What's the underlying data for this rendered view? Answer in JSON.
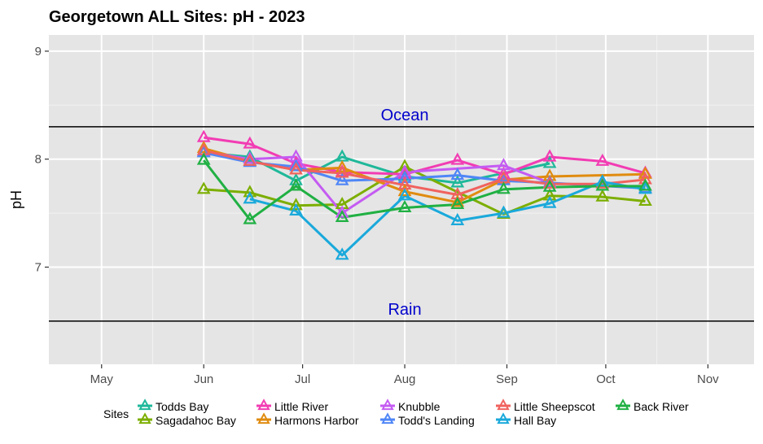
{
  "chart_data": {
    "type": "line",
    "title": "Georgetown ALL Sites: pH - 2023",
    "xlabel": "",
    "ylabel": "pH",
    "xlim": [
      "2023-04-15",
      "2023-11-15"
    ],
    "ylim": [
      6.1,
      9.15
    ],
    "x_ticks": [
      {
        "label": "May",
        "date": "2023-05-01"
      },
      {
        "label": "Jun",
        "date": "2023-06-01"
      },
      {
        "label": "Jul",
        "date": "2023-07-01"
      },
      {
        "label": "Aug",
        "date": "2023-08-01"
      },
      {
        "label": "Sep",
        "date": "2023-09-01"
      },
      {
        "label": "Oct",
        "date": "2023-10-01"
      },
      {
        "label": "Nov",
        "date": "2023-11-01"
      }
    ],
    "y_ticks": [
      7,
      8,
      9
    ],
    "grid": true,
    "background": "#e5e5e5",
    "reference_lines": [
      {
        "label": "Ocean",
        "y": 8.3,
        "label_date": "2023-08-01",
        "color": "#000000",
        "label_color": "#0000cc"
      },
      {
        "label": "Rain",
        "y": 6.5,
        "label_date": "2023-08-01",
        "color": "#000000",
        "label_color": "#0000cc"
      }
    ],
    "legend": {
      "title": "Sites",
      "position": "bottom",
      "marker": "triangle"
    },
    "series": [
      {
        "name": "Todds Bay",
        "color": "#1FB89A",
        "x": [
          "2023-06-01",
          "2023-06-15",
          "2023-06-29",
          "2023-07-13",
          "2023-08-01",
          "2023-08-17",
          "2023-09-14"
        ],
        "y": [
          8.06,
          8.02,
          7.8,
          8.02,
          7.84,
          7.78,
          7.96
        ]
      },
      {
        "name": "Sagadahoc Bay",
        "color": "#7CAE00",
        "x": [
          "2023-06-01",
          "2023-06-15",
          "2023-06-29",
          "2023-07-13",
          "2023-08-01",
          "2023-08-31",
          "2023-09-14",
          "2023-09-30",
          "2023-10-13"
        ],
        "y": [
          7.72,
          7.69,
          7.57,
          7.58,
          7.93,
          7.49,
          7.66,
          7.65,
          7.61
        ]
      },
      {
        "name": "Little River",
        "color": "#F23CB3",
        "x": [
          "2023-06-01",
          "2023-06-15",
          "2023-06-29",
          "2023-07-13",
          "2023-08-01",
          "2023-08-17",
          "2023-08-31",
          "2023-09-14",
          "2023-09-30",
          "2023-10-13"
        ],
        "y": [
          8.2,
          8.14,
          7.96,
          7.88,
          7.86,
          7.99,
          7.86,
          8.02,
          7.98,
          7.87
        ]
      },
      {
        "name": "Harmons Harbor",
        "color": "#E08B0F",
        "x": [
          "2023-06-01",
          "2023-06-15",
          "2023-06-29",
          "2023-07-13",
          "2023-08-01",
          "2023-08-17",
          "2023-08-31",
          "2023-09-14",
          "2023-10-13"
        ],
        "y": [
          8.1,
          7.98,
          7.9,
          7.92,
          7.7,
          7.6,
          7.81,
          7.84,
          7.86
        ]
      },
      {
        "name": "Knubble",
        "color": "#C45BF2",
        "x": [
          "2023-06-01",
          "2023-06-15",
          "2023-06-29",
          "2023-07-13",
          "2023-08-01",
          "2023-08-31",
          "2023-09-14"
        ],
        "y": [
          8.07,
          8.0,
          8.02,
          7.5,
          7.88,
          7.94,
          7.78
        ]
      },
      {
        "name": "Todd's Landing",
        "color": "#4F86F7",
        "x": [
          "2023-06-01",
          "2023-06-15",
          "2023-06-29",
          "2023-07-13",
          "2023-08-01",
          "2023-08-17",
          "2023-08-31",
          "2023-09-14",
          "2023-10-13"
        ],
        "y": [
          8.06,
          7.97,
          7.93,
          7.8,
          7.82,
          7.85,
          7.8,
          7.78,
          7.73
        ]
      },
      {
        "name": "Little Sheepscot",
        "color": "#F0625E",
        "x": [
          "2023-06-01",
          "2023-06-15",
          "2023-06-29",
          "2023-07-13",
          "2023-08-01",
          "2023-08-17",
          "2023-08-31",
          "2023-09-14",
          "2023-09-30",
          "2023-10-13"
        ],
        "y": [
          8.08,
          7.98,
          7.9,
          7.87,
          7.76,
          7.67,
          7.82,
          7.77,
          7.77,
          7.81
        ]
      },
      {
        "name": "Hall Bay",
        "color": "#1AA9DB",
        "x": [
          "2023-06-15",
          "2023-06-29",
          "2023-07-13",
          "2023-08-01",
          "2023-08-17",
          "2023-08-31",
          "2023-09-14",
          "2023-09-30",
          "2023-10-13"
        ],
        "y": [
          7.63,
          7.52,
          7.11,
          7.66,
          7.43,
          7.5,
          7.59,
          7.79,
          7.72
        ]
      },
      {
        "name": "Back River",
        "color": "#20B043",
        "x": [
          "2023-06-01",
          "2023-06-15",
          "2023-06-29",
          "2023-07-13",
          "2023-08-01",
          "2023-08-17",
          "2023-08-31",
          "2023-09-14",
          "2023-09-30",
          "2023-10-13"
        ],
        "y": [
          7.99,
          7.44,
          7.75,
          7.46,
          7.55,
          7.58,
          7.72,
          7.74,
          7.75,
          7.75
        ]
      }
    ]
  }
}
